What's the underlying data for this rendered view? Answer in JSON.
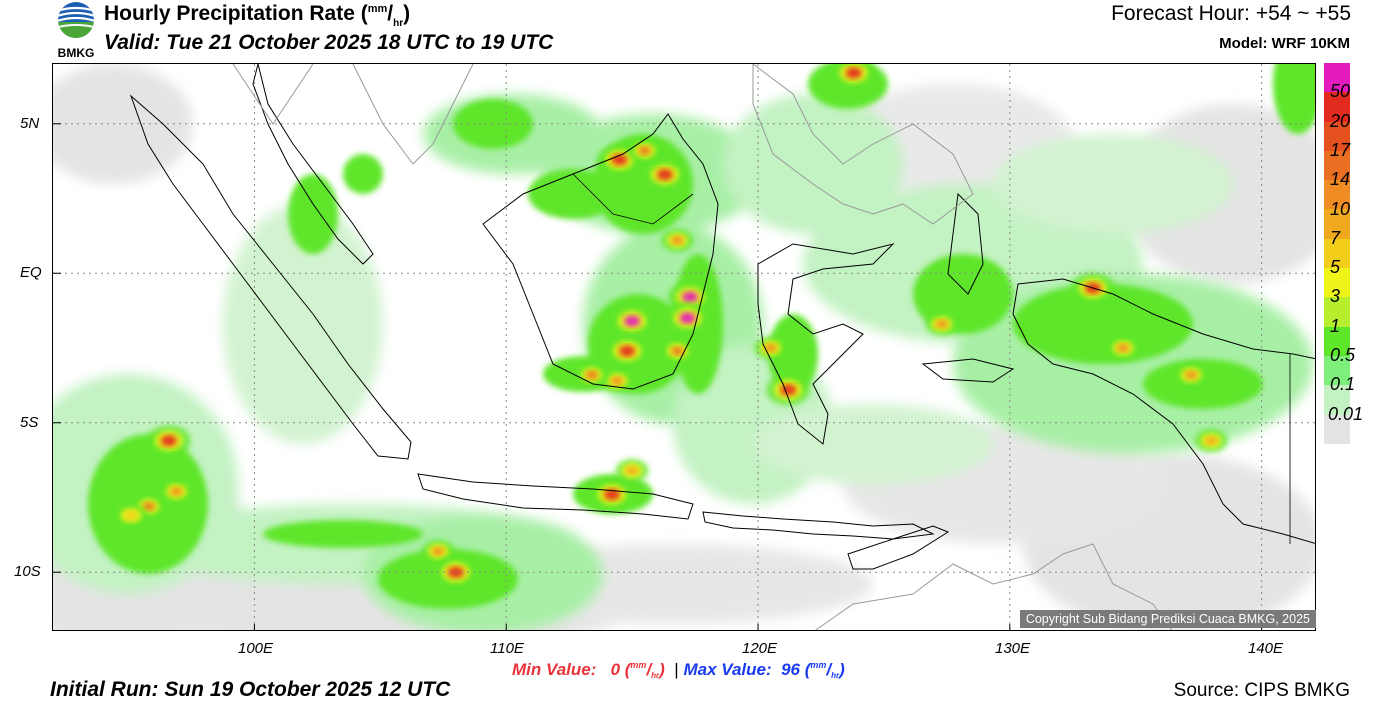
{
  "header": {
    "title": "Hourly Precipitation Rate (",
    "title_unit_top": "mm",
    "title_unit_bottom": "hr",
    "title_close": ")",
    "valid": "Valid: Tue 21 October 2025 18 UTC to 19 UTC",
    "forecast_hour": "Forecast Hour: +54 ~ +55",
    "model": "Model: WRF 10KM",
    "logo_text": "BMKG"
  },
  "map": {
    "y_axis": [
      "5N",
      "EQ",
      "5S",
      "10S"
    ],
    "x_axis": [
      "100E",
      "110E",
      "120E",
      "130E",
      "140E"
    ],
    "lat_ticks": [
      5,
      0,
      -5,
      -10
    ],
    "lon_ticks": [
      100,
      110,
      120,
      130,
      140
    ],
    "lon_range": [
      92,
      142.2
    ],
    "lat_range": [
      -12,
      7
    ],
    "copyright": "Copyright Sub Bidang Prediksi Cuaca BMKG, 2025",
    "rain_cells": [
      {
        "lon": 95.8,
        "lat": -7.8,
        "rate": 14
      },
      {
        "lon": 96.6,
        "lat": -5.6,
        "rate": 20
      },
      {
        "lon": 96.9,
        "lat": -7.3,
        "rate": 10
      },
      {
        "lon": 95.1,
        "lat": -8.1,
        "rate": 5
      },
      {
        "lon": 107.3,
        "lat": -9.3,
        "rate": 10
      },
      {
        "lon": 108.0,
        "lat": -10.0,
        "rate": 20
      },
      {
        "lon": 114.2,
        "lat": -7.4,
        "rate": 20
      },
      {
        "lon": 115.0,
        "lat": -6.6,
        "rate": 7
      },
      {
        "lon": 115.0,
        "lat": -1.6,
        "rate": 50
      },
      {
        "lon": 114.8,
        "lat": -2.6,
        "rate": 20
      },
      {
        "lon": 114.4,
        "lat": -3.6,
        "rate": 10
      },
      {
        "lon": 113.4,
        "lat": -3.4,
        "rate": 14
      },
      {
        "lon": 117.3,
        "lat": -0.8,
        "rate": 50
      },
      {
        "lon": 117.2,
        "lat": -1.5,
        "rate": 50
      },
      {
        "lon": 116.8,
        "lat": -2.6,
        "rate": 14
      },
      {
        "lon": 116.3,
        "lat": 3.3,
        "rate": 20
      },
      {
        "lon": 114.5,
        "lat": 3.8,
        "rate": 20
      },
      {
        "lon": 115.5,
        "lat": 4.1,
        "rate": 14
      },
      {
        "lon": 116.8,
        "lat": 1.1,
        "rate": 10
      },
      {
        "lon": 123.8,
        "lat": 6.7,
        "rate": 20
      },
      {
        "lon": 121.2,
        "lat": -3.9,
        "rate": 20
      },
      {
        "lon": 120.5,
        "lat": -2.5,
        "rate": 10
      },
      {
        "lon": 127.3,
        "lat": -1.7,
        "rate": 10
      },
      {
        "lon": 133.3,
        "lat": -0.5,
        "rate": 20
      },
      {
        "lon": 134.5,
        "lat": -2.5,
        "rate": 10
      },
      {
        "lon": 137.2,
        "lat": -3.4,
        "rate": 10
      },
      {
        "lon": 138.0,
        "lat": -5.6,
        "rate": 7
      }
    ]
  },
  "legend": {
    "labels": [
      "50",
      "20",
      "17",
      "14",
      "10",
      "7",
      "5",
      "3",
      "1",
      "0.5",
      "0.1",
      "0.01"
    ],
    "colors": [
      "#e31bbf",
      "#e32a1f",
      "#e4511e",
      "#ea6f23",
      "#ef8c24",
      "#f0a81f",
      "#f2cd1a",
      "#eef31a",
      "#b6ee2e",
      "#5ee62a",
      "#7def7a",
      "#c3f2c3",
      "#e4e4e4"
    ]
  },
  "footer": {
    "min_label": "Min Value:",
    "min_value": "0",
    "max_label": "Max Value:",
    "max_value": "96",
    "unit_top": "mm",
    "unit_bottom": "hr",
    "separator": "|",
    "initial_run": "Initial Run: Sun 19 October 2025 12 UTC",
    "source": "Source: CIPS BMKG"
  }
}
